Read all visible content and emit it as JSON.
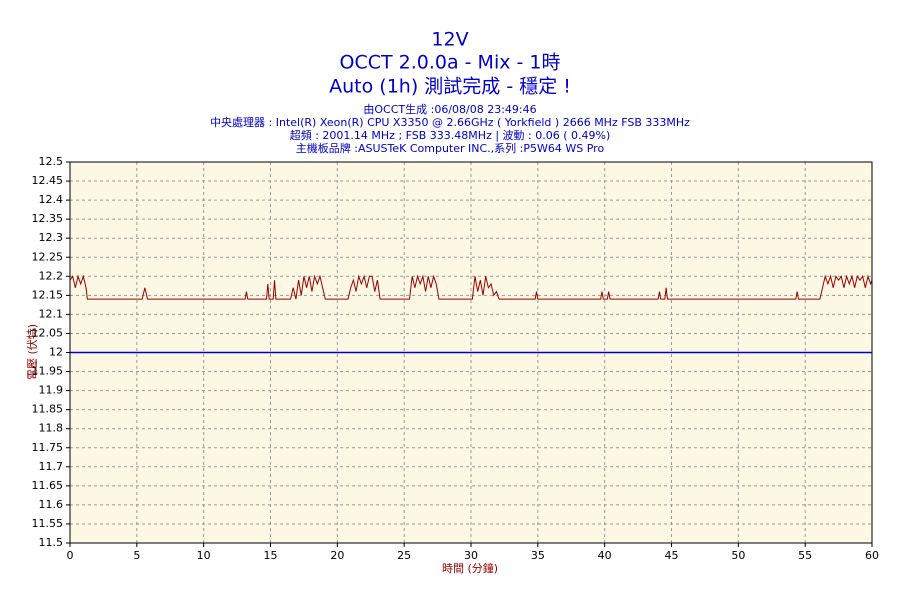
{
  "chart_data": {
    "type": "line",
    "title": "12V",
    "subtitle": [
      "OCCT 2.0.0a - Mix - 1時",
      "Auto (1h) 測試完成 - 穩定 !"
    ],
    "info": [
      "由OCCT生成 :06/08/08 23:49:46",
      "中央處理器 : Intel(R) Xeon(R) CPU X3350 @ 2.66GHz ( Yorkfield ) 2666 MHz FSB 333MHz",
      "超頻 : 2001.14 MHz ; FSB 333.48MHz | 波動 : 0.06 ( 0.49%)",
      "主機板品牌 :ASUSTeK Computer INC.,系列 :P5W64 WS Pro"
    ],
    "x_label": "時間 (分鐘)",
    "y_label": "電壓 (伏特)",
    "xlim": [
      0,
      60
    ],
    "xticks": [
      0,
      5,
      10,
      15,
      20,
      25,
      30,
      35,
      40,
      45,
      50,
      55,
      60
    ],
    "ylim": [
      11.5,
      12.5
    ],
    "yticks": [
      11.5,
      11.55,
      11.6,
      11.65,
      11.7,
      11.75,
      11.8,
      11.85,
      11.9,
      11.95,
      12,
      12.05,
      12.1,
      12.15,
      12.2,
      12.25,
      12.3,
      12.35,
      12.4,
      12.45,
      12.5
    ],
    "grid": true,
    "x": [
      0,
      0.2,
      0.4,
      0.6,
      0.8,
      1.0,
      1.2,
      1.3,
      5.4,
      5.6,
      5.8,
      13.1,
      13.2,
      13.3,
      14.7,
      14.8,
      14.9,
      15.2,
      15.3,
      15.4,
      16.5,
      16.7,
      16.9,
      17.1,
      17.3,
      17.5,
      17.7,
      17.9,
      18.1,
      18.3,
      18.5,
      18.7,
      18.9,
      19.1,
      20.8,
      21.0,
      21.2,
      21.4,
      21.6,
      21.8,
      22.0,
      22.2,
      22.4,
      22.6,
      22.8,
      23.0,
      23.2,
      25.4,
      25.6,
      25.8,
      26.0,
      26.2,
      26.4,
      26.6,
      26.8,
      27.0,
      27.2,
      27.4,
      27.6,
      30.1,
      30.3,
      30.5,
      30.7,
      30.9,
      31.1,
      31.3,
      31.5,
      31.7,
      31.9,
      32.1,
      34.8,
      34.9,
      35.0,
      39.7,
      39.8,
      39.9,
      40.2,
      40.3,
      40.4,
      44.0,
      44.1,
      44.2,
      44.5,
      44.6,
      44.7,
      54.3,
      54.4,
      54.5,
      56.1,
      56.3,
      56.5,
      56.7,
      56.9,
      57.1,
      57.3,
      57.5,
      57.7,
      57.9,
      58.1,
      58.3,
      58.5,
      58.7,
      58.9,
      59.1,
      59.3,
      59.5,
      59.7,
      59.9,
      60.0
    ],
    "series": [
      {
        "color": "#990000",
        "values": [
          12.19,
          12.2,
          12.17,
          12.2,
          12.18,
          12.2,
          12.17,
          12.14,
          12.14,
          12.17,
          12.14,
          12.14,
          12.16,
          12.14,
          12.14,
          12.18,
          12.14,
          12.14,
          12.19,
          12.14,
          12.14,
          12.17,
          12.14,
          12.19,
          12.15,
          12.2,
          12.17,
          12.2,
          12.16,
          12.2,
          12.18,
          12.2,
          12.17,
          12.14,
          12.14,
          12.17,
          12.19,
          12.16,
          12.2,
          12.18,
          12.2,
          12.17,
          12.2,
          12.2,
          12.16,
          12.19,
          12.14,
          12.14,
          12.2,
          12.17,
          12.2,
          12.18,
          12.2,
          12.16,
          12.2,
          12.17,
          12.2,
          12.18,
          12.14,
          12.14,
          12.2,
          12.16,
          12.19,
          12.15,
          12.2,
          12.17,
          12.18,
          12.15,
          12.16,
          12.14,
          12.14,
          12.16,
          12.14,
          12.14,
          12.16,
          12.14,
          12.14,
          12.16,
          12.14,
          12.14,
          12.16,
          12.14,
          12.14,
          12.17,
          12.14,
          12.14,
          12.16,
          12.14,
          12.14,
          12.17,
          12.2,
          12.18,
          12.2,
          12.17,
          12.2,
          12.19,
          12.2,
          12.17,
          12.2,
          12.18,
          12.2,
          12.17,
          12.2,
          12.19,
          12.2,
          12.17,
          12.2,
          12.18,
          12.19
        ]
      }
    ],
    "reference_line": {
      "value": 12,
      "color": "#0000cc"
    }
  }
}
